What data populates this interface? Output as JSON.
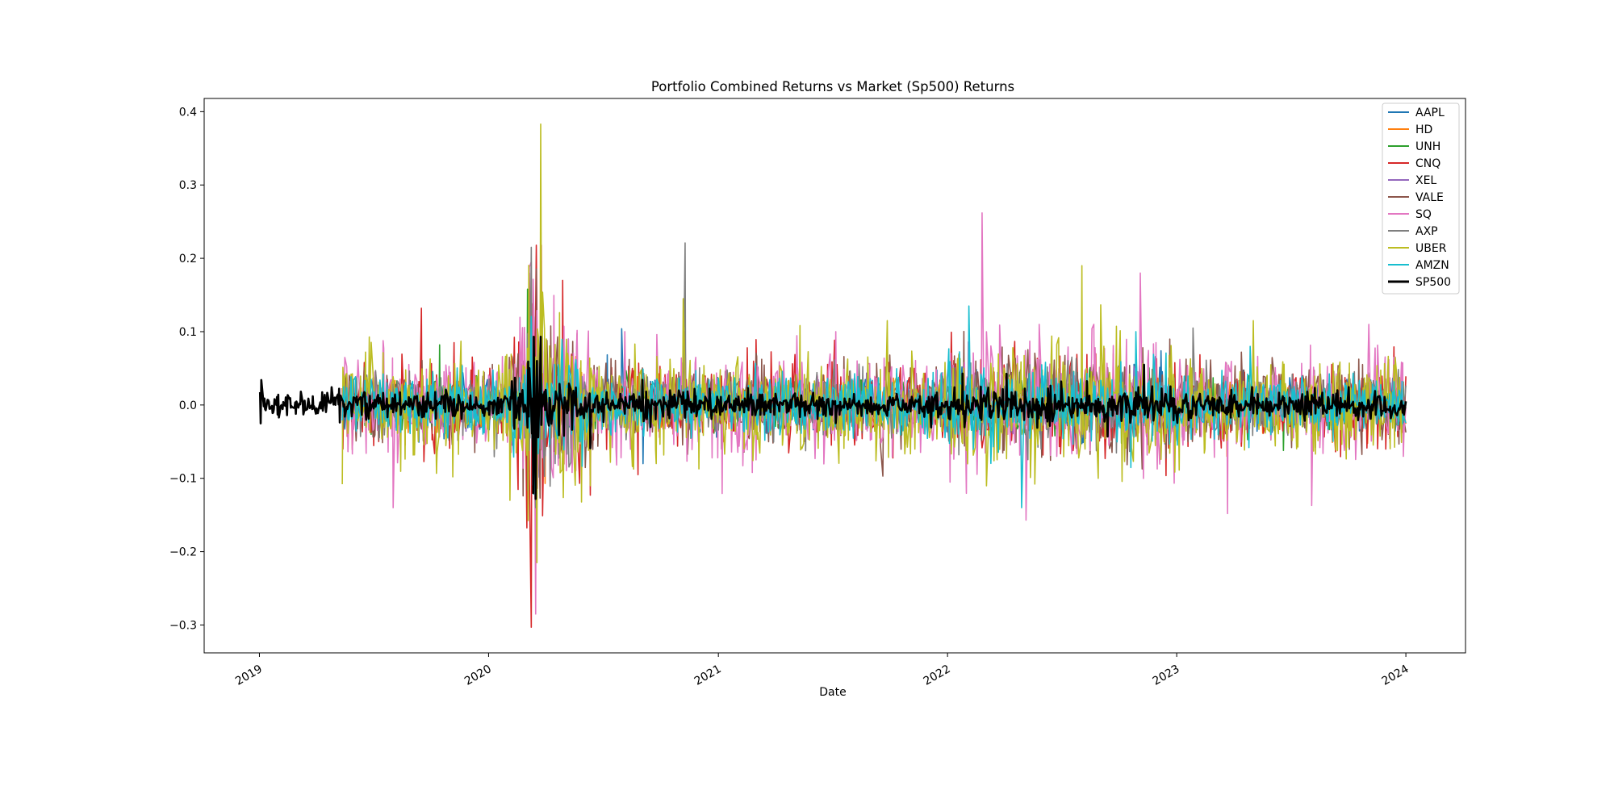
{
  "chart_data": {
    "type": "line",
    "title": "Portfolio Combined Returns vs Market (Sp500) Returns",
    "xlabel": "Date",
    "ylabel": "",
    "xlim": [
      "2018-10-05",
      "2024-04-05"
    ],
    "ylim": [
      -0.338,
      0.418
    ],
    "x_ticks": [
      {
        "value": "2019-01-01",
        "label": "2019"
      },
      {
        "value": "2020-01-01",
        "label": "2020"
      },
      {
        "value": "2021-01-01",
        "label": "2021"
      },
      {
        "value": "2022-01-01",
        "label": "2022"
      },
      {
        "value": "2023-01-01",
        "label": "2023"
      },
      {
        "value": "2024-01-01",
        "label": "2024"
      }
    ],
    "y_ticks": [
      {
        "value": 0.4,
        "label": "0.4"
      },
      {
        "value": 0.3,
        "label": "0.3"
      },
      {
        "value": 0.2,
        "label": "0.2"
      },
      {
        "value": 0.1,
        "label": "0.1"
      },
      {
        "value": 0.0,
        "label": "0.0"
      },
      {
        "value": -0.1,
        "label": "−0.1"
      },
      {
        "value": -0.2,
        "label": "−0.2"
      },
      {
        "value": -0.3,
        "label": "−0.3"
      }
    ],
    "grid": false,
    "legend": {
      "position": "top-right"
    },
    "series": [
      {
        "name": "AAPL",
        "color": "#1f77b4",
        "start": "2019-05-13",
        "end": "2024-01-01",
        "base_vol": 0.018,
        "spikes": [
          [
            "2020-03-16",
            -0.13
          ],
          [
            "2020-03-13",
            0.12
          ],
          [
            "2020-07-31",
            0.104
          ],
          [
            "2020-09-03",
            -0.08
          ],
          [
            "2022-10-28",
            0.075
          ]
        ]
      },
      {
        "name": "HD",
        "color": "#ff7f0e",
        "start": "2019-05-13",
        "end": "2024-01-01",
        "base_vol": 0.015,
        "spikes": [
          [
            "2020-03-16",
            -0.15
          ],
          [
            "2020-03-24",
            0.12
          ],
          [
            "2023-03-22",
            -0.07
          ]
        ]
      },
      {
        "name": "UNH",
        "color": "#2ca02c",
        "start": "2019-05-13",
        "end": "2024-01-01",
        "base_vol": 0.016,
        "spikes": [
          [
            "2019-10-15",
            0.082
          ],
          [
            "2020-03-09",
            0.107
          ],
          [
            "2020-03-16",
            -0.17
          ],
          [
            "2023-06-20",
            -0.062
          ],
          [
            "2023-04-14",
            -0.05
          ]
        ]
      },
      {
        "name": "CNQ",
        "color": "#d62728",
        "start": "2019-05-13",
        "end": "2024-01-01",
        "base_vol": 0.025,
        "spikes": [
          [
            "2019-09-16",
            0.132
          ],
          [
            "2019-11-07",
            0.085
          ],
          [
            "2020-03-09",
            -0.303
          ],
          [
            "2020-03-17",
            0.218
          ],
          [
            "2020-03-25",
            0.218
          ],
          [
            "2020-04-28",
            0.17
          ],
          [
            "2020-06-11",
            -0.123
          ],
          [
            "2020-08-26",
            -0.095
          ],
          [
            "2020-11-09",
            0.1
          ]
        ]
      },
      {
        "name": "XEL",
        "color": "#9467bd",
        "start": "2019-05-13",
        "end": "2024-01-01",
        "base_vol": 0.013,
        "spikes": [
          [
            "2020-03-16",
            -0.12
          ],
          [
            "2020-03-24",
            0.11
          ]
        ]
      },
      {
        "name": "VALE",
        "color": "#8c564b",
        "start": "2019-05-13",
        "end": "2024-01-01",
        "base_vol": 0.026,
        "spikes": [
          [
            "2020-03-06",
            0.18
          ],
          [
            "2020-03-16",
            -0.14
          ],
          [
            "2021-09-20",
            -0.097
          ],
          [
            "2022-10-03",
            0.09
          ]
        ]
      },
      {
        "name": "SQ",
        "color": "#e377c2",
        "start": "2019-05-13",
        "end": "2024-01-01",
        "base_vol": 0.033,
        "spikes": [
          [
            "2019-08-02",
            -0.14
          ],
          [
            "2020-03-16",
            -0.285
          ],
          [
            "2020-03-24",
            0.153
          ],
          [
            "2020-05-07",
            0.09
          ],
          [
            "2020-08-05",
            0.1
          ],
          [
            "2021-02-24",
            -0.092
          ],
          [
            "2021-07-07",
            0.1
          ],
          [
            "2022-02-25",
            0.262
          ],
          [
            "2022-05-06",
            -0.157
          ],
          [
            "2022-05-27",
            0.11
          ],
          [
            "2022-11-04",
            0.18
          ],
          [
            "2023-03-23",
            -0.148
          ],
          [
            "2023-08-04",
            -0.137
          ],
          [
            "2023-11-03",
            0.11
          ],
          [
            "2023-12-28",
            -0.07
          ]
        ]
      },
      {
        "name": "AXP",
        "color": "#7f7f7f",
        "start": "2019-05-13",
        "end": "2024-01-01",
        "base_vol": 0.02,
        "spikes": [
          [
            "2020-03-16",
            -0.14
          ],
          [
            "2020-03-09",
            0.215
          ],
          [
            "2020-11-09",
            0.221
          ],
          [
            "2023-01-27",
            0.105
          ]
        ]
      },
      {
        "name": "UBER",
        "color": "#bcbd22",
        "start": "2019-05-13",
        "end": "2024-01-01",
        "base_vol": 0.032,
        "spikes": [
          [
            "2019-05-13",
            -0.108
          ],
          [
            "2019-05-10",
            0.077
          ],
          [
            "2019-11-05",
            -0.098
          ],
          [
            "2020-03-18",
            -0.215
          ],
          [
            "2020-03-24",
            0.383
          ],
          [
            "2020-06-11",
            -0.11
          ],
          [
            "2020-11-06",
            0.145
          ],
          [
            "2021-09-27",
            0.115
          ],
          [
            "2022-08-03",
            0.19
          ],
          [
            "2022-08-29",
            -0.1
          ],
          [
            "2023-05-03",
            0.115
          ]
        ]
      },
      {
        "name": "AMZN",
        "color": "#17becf",
        "start": "2019-05-13",
        "end": "2024-01-01",
        "base_vol": 0.02,
        "spikes": [
          [
            "2022-02-04",
            0.135
          ],
          [
            "2022-04-29",
            -0.14
          ],
          [
            "2022-10-28",
            0.1
          ],
          [
            "2023-04-28",
            0.08
          ]
        ]
      },
      {
        "name": "SP500",
        "color": "#000000",
        "start": "2019-01-02",
        "end": "2024-01-01",
        "base_vol": 0.009,
        "spikes": [
          [
            "2019-01-03",
            -0.025
          ],
          [
            "2019-01-04",
            0.034
          ],
          [
            "2020-03-12",
            -0.12
          ],
          [
            "2020-03-16",
            -0.128
          ],
          [
            "2020-03-24",
            0.093
          ],
          [
            "2020-03-13",
            0.093
          ],
          [
            "2020-03-18",
            0.06
          ],
          [
            "2020-06-11",
            -0.059
          ],
          [
            "2022-09-13",
            -0.043
          ],
          [
            "2022-11-10",
            0.055
          ]
        ]
      }
    ]
  }
}
